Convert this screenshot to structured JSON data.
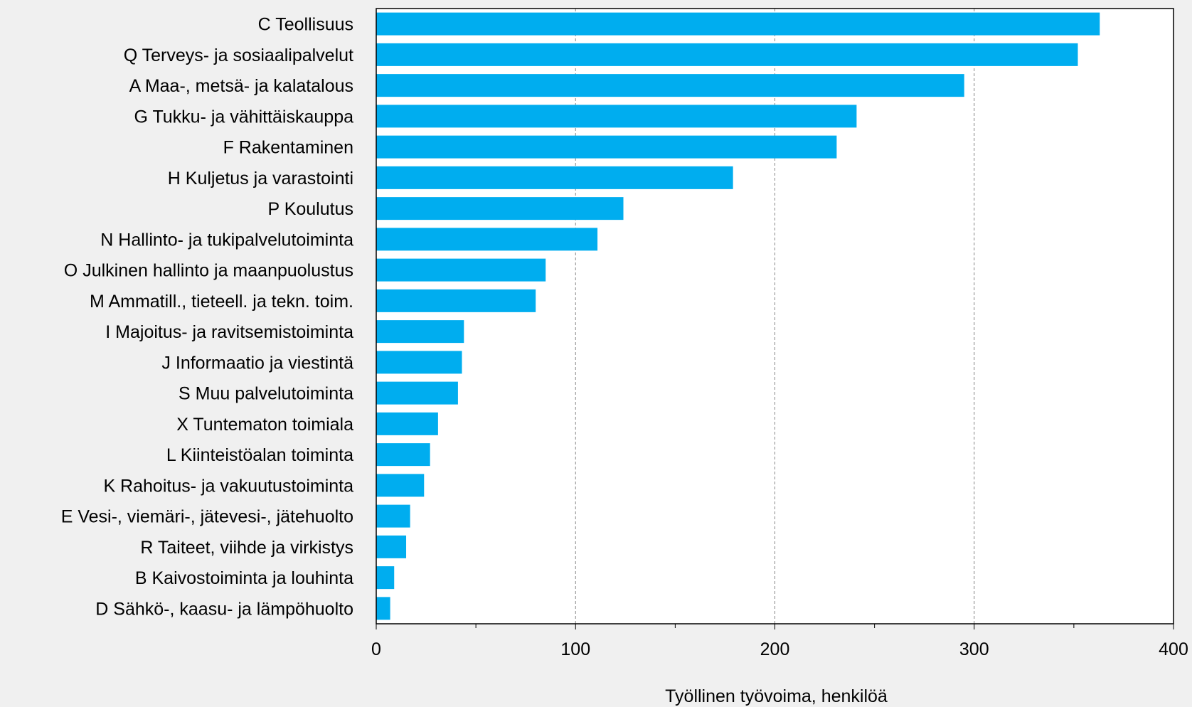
{
  "chart_data": {
    "type": "bar",
    "orientation": "horizontal",
    "categories": [
      "C Teollisuus",
      "Q Terveys- ja sosiaalipalvelut",
      "A Maa-, metsä- ja kalatalous",
      "G Tukku- ja vähittäiskauppa",
      "F Rakentaminen",
      "H Kuljetus ja varastointi",
      "P Koulutus",
      "N Hallinto- ja tukipalvelutoiminta",
      "O Julkinen hallinto ja maanpuolustus",
      "M Ammatill., tieteell. ja tekn. toim.",
      "I Majoitus- ja ravitsemistoiminta",
      "J Informaatio ja viestintä",
      "S Muu palvelutoiminta",
      "X Tuntematon toimiala",
      "L Kiinteistöalan toiminta",
      "K Rahoitus- ja vakuutustoiminta",
      "E Vesi-, viemäri-,  jätevesi-, jätehuolto",
      "R Taiteet, viihde ja virkistys",
      "B Kaivostoiminta ja louhinta",
      "D Sähkö-, kaasu- ja lämpöhuolto"
    ],
    "values": [
      363,
      352,
      295,
      241,
      231,
      179,
      124,
      111,
      85,
      80,
      44,
      43,
      41,
      31,
      27,
      24,
      17,
      15,
      9,
      7
    ],
    "title": "",
    "xlabel": "Työllinen työvoima, henkilöä",
    "ylabel": "",
    "xlim": [
      0,
      400
    ],
    "xticks": [
      0,
      100,
      200,
      300,
      400
    ],
    "grid": "vertical dashed at major ticks",
    "legend": "none",
    "colors": {
      "bar": "#00adef",
      "background": "#f0f0f0",
      "plot_background": "#ffffff",
      "grid": "#888888",
      "axis": "#000000"
    }
  }
}
